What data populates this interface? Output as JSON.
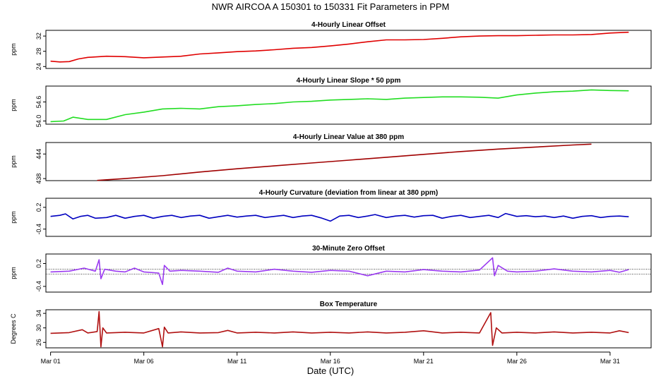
{
  "title": "NWR   AIRCOA A   150301 to 150331   Fit Parameters in PPM",
  "xlabel": "Date (UTC)",
  "x_ticks": [
    {
      "day": 1,
      "label": "Mar 01"
    },
    {
      "day": 6,
      "label": "Mar 06"
    },
    {
      "day": 11,
      "label": "Mar 11"
    },
    {
      "day": 16,
      "label": "Mar 16"
    },
    {
      "day": 21,
      "label": "Mar 21"
    },
    {
      "day": 26,
      "label": "Mar 26"
    },
    {
      "day": 31,
      "label": "Mar 31"
    }
  ],
  "colors": {
    "offset": "#e00000",
    "slope": "#22dd22",
    "value": "#a00000",
    "curvature": "#0000c0",
    "zero": "#9a3af0",
    "temperature": "#b01010"
  },
  "chart_data": [
    {
      "type": "line",
      "title": "4-Hourly Linear Offset",
      "ylabel": "ppm",
      "yticks": [
        "24",
        "28",
        "32"
      ],
      "ylim": [
        23.5,
        33.5
      ],
      "xlim": [
        0.75,
        33.2
      ],
      "series": [
        {
          "color_key": "offset",
          "points": [
            [
              1.0,
              25.4
            ],
            [
              1.5,
              25.2
            ],
            [
              2.0,
              25.3
            ],
            [
              2.5,
              26.0
            ],
            [
              3.0,
              26.4
            ],
            [
              4.0,
              26.7
            ],
            [
              5.0,
              26.6
            ],
            [
              6.0,
              26.3
            ],
            [
              7.0,
              26.5
            ],
            [
              8.0,
              26.7
            ],
            [
              9.0,
              27.3
            ],
            [
              10.0,
              27.6
            ],
            [
              11.0,
              27.9
            ],
            [
              12.0,
              28.1
            ],
            [
              13.0,
              28.4
            ],
            [
              14.0,
              28.8
            ],
            [
              15.0,
              29.0
            ],
            [
              16.0,
              29.4
            ],
            [
              17.0,
              29.9
            ],
            [
              18.0,
              30.5
            ],
            [
              19.0,
              31.0
            ],
            [
              20.0,
              31.0
            ],
            [
              21.0,
              31.1
            ],
            [
              22.0,
              31.4
            ],
            [
              23.0,
              31.8
            ],
            [
              24.0,
              32.0
            ],
            [
              25.0,
              32.1
            ],
            [
              26.0,
              32.1
            ],
            [
              27.0,
              32.2
            ],
            [
              28.0,
              32.3
            ],
            [
              29.0,
              32.3
            ],
            [
              30.0,
              32.4
            ],
            [
              31.0,
              32.8
            ],
            [
              32.0,
              33.0
            ]
          ]
        }
      ]
    },
    {
      "type": "line",
      "title": "4-Hourly Linear Slope * 50 ppm",
      "ylabel": "ppm",
      "yticks": [
        "54.0",
        "54.6"
      ],
      "ylim": [
        53.9,
        55.1
      ],
      "xlim": [
        0.75,
        33.2
      ],
      "series": [
        {
          "color_key": "slope",
          "points": [
            [
              1.0,
              53.98
            ],
            [
              1.7,
              54.0
            ],
            [
              2.2,
              54.12
            ],
            [
              3.0,
              54.05
            ],
            [
              4.0,
              54.05
            ],
            [
              5.0,
              54.2
            ],
            [
              6.0,
              54.28
            ],
            [
              7.0,
              54.38
            ],
            [
              8.0,
              54.4
            ],
            [
              9.0,
              54.38
            ],
            [
              10.0,
              54.45
            ],
            [
              11.0,
              54.48
            ],
            [
              12.0,
              54.52
            ],
            [
              13.0,
              54.55
            ],
            [
              14.0,
              54.6
            ],
            [
              15.0,
              54.62
            ],
            [
              16.0,
              54.66
            ],
            [
              17.0,
              54.68
            ],
            [
              18.0,
              54.7
            ],
            [
              19.0,
              54.68
            ],
            [
              20.0,
              54.72
            ],
            [
              21.0,
              54.74
            ],
            [
              22.0,
              54.76
            ],
            [
              23.0,
              54.76
            ],
            [
              24.0,
              54.75
            ],
            [
              25.0,
              54.72
            ],
            [
              26.0,
              54.82
            ],
            [
              27.0,
              54.88
            ],
            [
              28.0,
              54.92
            ],
            [
              29.0,
              54.94
            ],
            [
              30.0,
              54.98
            ],
            [
              31.0,
              54.96
            ],
            [
              32.0,
              54.95
            ]
          ]
        }
      ]
    },
    {
      "type": "line",
      "title": "4-Hourly Linear Value at 380 ppm",
      "ylabel": "ppm",
      "yticks": [
        "438",
        "444"
      ],
      "ylim": [
        437.5,
        446.8
      ],
      "xlim": [
        0.75,
        33.2
      ],
      "series": [
        {
          "color_key": "value",
          "points": [
            [
              3.5,
              437.55
            ],
            [
              5.0,
              438.0
            ],
            [
              7.0,
              438.7
            ],
            [
              9.0,
              439.6
            ],
            [
              11.0,
              440.4
            ],
            [
              13.0,
              441.1
            ],
            [
              15.0,
              441.8
            ],
            [
              17.0,
              442.5
            ],
            [
              19.0,
              443.2
            ],
            [
              21.0,
              443.9
            ],
            [
              23.0,
              444.6
            ],
            [
              25.0,
              445.2
            ],
            [
              27.0,
              445.7
            ],
            [
              29.0,
              446.2
            ],
            [
              30.0,
              446.4
            ]
          ]
        }
      ]
    },
    {
      "type": "line",
      "title": "4-Hourly Curvature (deviation from linear at 380 ppm)",
      "ylabel": "ppm",
      "yticks": [
        "-0.4",
        "0.2"
      ],
      "ylim": [
        -0.6,
        0.45
      ],
      "xlim": [
        0.75,
        33.2
      ],
      "series": [
        {
          "color_key": "curvature",
          "points": [
            [
              1.0,
              -0.05
            ],
            [
              1.5,
              -0.02
            ],
            [
              1.8,
              0.02
            ],
            [
              2.2,
              -0.12
            ],
            [
              2.6,
              -0.05
            ],
            [
              3.0,
              -0.02
            ],
            [
              3.4,
              -0.1
            ],
            [
              4.0,
              -0.08
            ],
            [
              4.5,
              -0.02
            ],
            [
              5.0,
              -0.1
            ],
            [
              5.5,
              -0.05
            ],
            [
              6.0,
              -0.02
            ],
            [
              6.5,
              -0.1
            ],
            [
              7.0,
              -0.05
            ],
            [
              7.5,
              -0.02
            ],
            [
              8.0,
              -0.08
            ],
            [
              8.5,
              -0.04
            ],
            [
              9.0,
              -0.02
            ],
            [
              9.5,
              -0.1
            ],
            [
              10.0,
              -0.06
            ],
            [
              10.5,
              -0.02
            ],
            [
              11.0,
              -0.07
            ],
            [
              11.5,
              -0.04
            ],
            [
              12.0,
              -0.02
            ],
            [
              12.5,
              -0.08
            ],
            [
              13.0,
              -0.05
            ],
            [
              13.5,
              -0.02
            ],
            [
              14.0,
              -0.08
            ],
            [
              14.5,
              -0.04
            ],
            [
              15.0,
              -0.02
            ],
            [
              15.5,
              -0.09
            ],
            [
              16.0,
              -0.18
            ],
            [
              16.5,
              -0.04
            ],
            [
              17.0,
              -0.02
            ],
            [
              17.5,
              -0.08
            ],
            [
              18.0,
              -0.04
            ],
            [
              18.4,
              0.0
            ],
            [
              19.0,
              -0.08
            ],
            [
              19.5,
              -0.04
            ],
            [
              20.0,
              -0.02
            ],
            [
              20.5,
              -0.07
            ],
            [
              21.0,
              -0.03
            ],
            [
              21.5,
              -0.02
            ],
            [
              22.0,
              -0.1
            ],
            [
              22.5,
              -0.05
            ],
            [
              23.0,
              -0.02
            ],
            [
              23.5,
              -0.08
            ],
            [
              24.0,
              -0.05
            ],
            [
              24.5,
              -0.02
            ],
            [
              25.0,
              -0.08
            ],
            [
              25.4,
              0.03
            ],
            [
              26.0,
              -0.05
            ],
            [
              26.5,
              -0.03
            ],
            [
              27.0,
              -0.06
            ],
            [
              27.5,
              -0.04
            ],
            [
              28.0,
              -0.08
            ],
            [
              28.5,
              -0.04
            ],
            [
              29.0,
              -0.1
            ],
            [
              29.5,
              -0.05
            ],
            [
              30.0,
              -0.03
            ],
            [
              30.5,
              -0.08
            ],
            [
              31.0,
              -0.05
            ],
            [
              31.5,
              -0.04
            ],
            [
              32.0,
              -0.06
            ]
          ]
        }
      ]
    },
    {
      "type": "line",
      "title": "30-Minute Zero Offset",
      "ylabel": "ppm",
      "yticks": [
        "-0.4",
        "0.2"
      ],
      "ylim": [
        -0.55,
        0.45
      ],
      "xlim": [
        0.75,
        33.2
      ],
      "reference_lines": [
        0.05,
        -0.08
      ],
      "series": [
        {
          "color_key": "zero",
          "points": [
            [
              1.0,
              -0.02
            ],
            [
              2.0,
              0.0
            ],
            [
              2.8,
              0.08
            ],
            [
              3.4,
              0.0
            ],
            [
              3.6,
              0.3
            ],
            [
              3.7,
              -0.2
            ],
            [
              3.9,
              0.05
            ],
            [
              4.5,
              0.0
            ],
            [
              5.0,
              -0.02
            ],
            [
              5.5,
              0.08
            ],
            [
              6.0,
              -0.02
            ],
            [
              6.8,
              -0.05
            ],
            [
              7.0,
              -0.35
            ],
            [
              7.1,
              0.15
            ],
            [
              7.4,
              0.0
            ],
            [
              8.0,
              0.02
            ],
            [
              9.0,
              0.0
            ],
            [
              10.0,
              -0.03
            ],
            [
              10.5,
              0.08
            ],
            [
              11.0,
              0.0
            ],
            [
              12.0,
              -0.02
            ],
            [
              13.0,
              0.05
            ],
            [
              14.0,
              0.0
            ],
            [
              15.0,
              -0.03
            ],
            [
              16.0,
              0.02
            ],
            [
              17.0,
              0.0
            ],
            [
              18.0,
              -0.12
            ],
            [
              19.0,
              0.0
            ],
            [
              20.0,
              -0.02
            ],
            [
              21.0,
              0.04
            ],
            [
              22.0,
              0.0
            ],
            [
              23.0,
              -0.02
            ],
            [
              24.0,
              0.03
            ],
            [
              24.7,
              0.35
            ],
            [
              24.8,
              -0.12
            ],
            [
              25.0,
              0.15
            ],
            [
              25.5,
              0.0
            ],
            [
              26.0,
              -0.02
            ],
            [
              27.0,
              0.0
            ],
            [
              28.0,
              0.06
            ],
            [
              29.0,
              0.0
            ],
            [
              30.0,
              -0.02
            ],
            [
              31.0,
              0.02
            ],
            [
              31.5,
              -0.03
            ],
            [
              32.0,
              0.04
            ]
          ]
        }
      ]
    },
    {
      "type": "line",
      "title": "Box Temperature",
      "ylabel": "Degrees C",
      "yticks": [
        "26",
        "30",
        "34"
      ],
      "ylim": [
        24.5,
        35.0
      ],
      "xlim": [
        0.75,
        33.2
      ],
      "series": [
        {
          "color_key": "temperature",
          "points": [
            [
              1.0,
              28.5
            ],
            [
              2.0,
              28.7
            ],
            [
              2.7,
              29.5
            ],
            [
              3.0,
              28.6
            ],
            [
              3.5,
              29.0
            ],
            [
              3.6,
              34.5
            ],
            [
              3.7,
              24.8
            ],
            [
              3.8,
              30.0
            ],
            [
              4.0,
              28.6
            ],
            [
              5.0,
              28.8
            ],
            [
              6.0,
              28.6
            ],
            [
              6.8,
              29.8
            ],
            [
              7.0,
              24.8
            ],
            [
              7.1,
              30.2
            ],
            [
              7.3,
              28.6
            ],
            [
              8.0,
              28.9
            ],
            [
              9.0,
              28.6
            ],
            [
              10.0,
              28.7
            ],
            [
              10.5,
              29.3
            ],
            [
              11.0,
              28.6
            ],
            [
              12.0,
              28.8
            ],
            [
              13.0,
              28.6
            ],
            [
              14.0,
              28.9
            ],
            [
              15.0,
              28.6
            ],
            [
              16.0,
              28.8
            ],
            [
              17.0,
              28.6
            ],
            [
              18.0,
              28.9
            ],
            [
              19.0,
              28.6
            ],
            [
              20.0,
              28.8
            ],
            [
              21.0,
              29.2
            ],
            [
              22.0,
              28.6
            ],
            [
              23.0,
              28.8
            ],
            [
              24.0,
              28.6
            ],
            [
              24.6,
              34.2
            ],
            [
              24.7,
              25.2
            ],
            [
              24.9,
              30.0
            ],
            [
              25.2,
              28.6
            ],
            [
              26.0,
              28.8
            ],
            [
              27.0,
              28.6
            ],
            [
              28.0,
              28.9
            ],
            [
              29.0,
              28.6
            ],
            [
              30.0,
              28.8
            ],
            [
              31.0,
              28.6
            ],
            [
              31.5,
              29.2
            ],
            [
              32.0,
              28.7
            ]
          ]
        }
      ]
    }
  ]
}
